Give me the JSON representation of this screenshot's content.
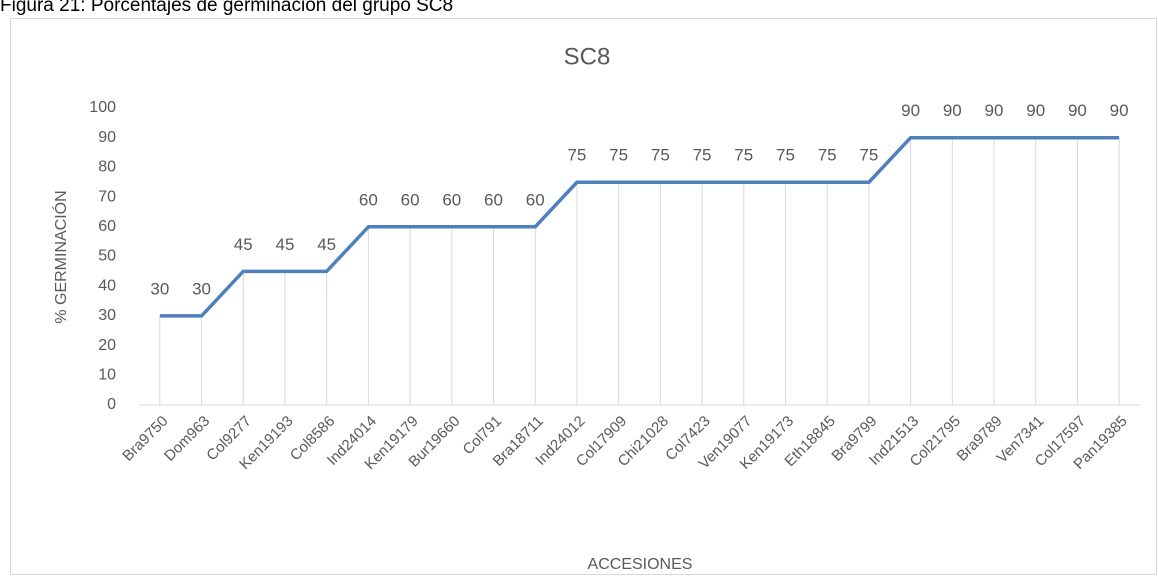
{
  "caption": "Figura 21: Porcentajes de germinación del grupo SC8",
  "chart_data": {
    "type": "line",
    "title": "SC8",
    "x_label": "ACCESIONES",
    "y_label": "% GERMINACIÓN",
    "categories": [
      "Bra9750",
      "Dom963",
      "Col9277",
      "Ken19193",
      "Col8586",
      "Ind24014",
      "Ken19179",
      "Bur19660",
      "Col791",
      "Bra18711",
      "Ind24012",
      "Col17909",
      "Chi21028",
      "Col7423",
      "Ven19077",
      "Ken19173",
      "Eth18845",
      "Bra9799",
      "Ind21513",
      "Col21795",
      "Bra9789",
      "Ven7341",
      "Col17597",
      "Pan19385"
    ],
    "series": [
      {
        "name": "SC8",
        "color": "#4f7fbd",
        "values": [
          30,
          30,
          45,
          45,
          45,
          60,
          60,
          60,
          60,
          60,
          75,
          75,
          75,
          75,
          75,
          75,
          75,
          75,
          90,
          90,
          90,
          90,
          90,
          90
        ]
      }
    ],
    "ylim": [
      0,
      100
    ],
    "yticks": [
      0,
      10,
      20,
      30,
      40,
      50,
      60,
      70,
      80,
      90,
      100
    ],
    "drop_lines": true,
    "data_labels": true
  }
}
